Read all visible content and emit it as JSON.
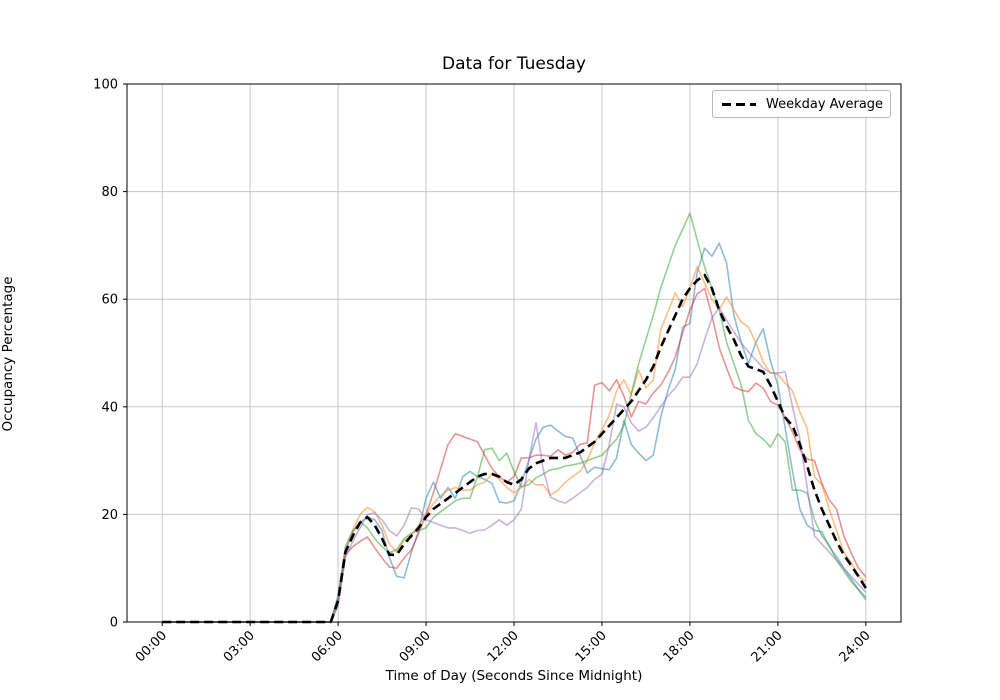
{
  "figure": {
    "title": "Data for Tuesday",
    "background": "#ffffff"
  },
  "axes": {
    "xlabel": "Time of Day (Seconds Since Midnight)",
    "ylabel": "Occupancy Percentage",
    "grid": true,
    "grid_color": "#c8c8c8",
    "spine_color": "#000000",
    "tick_font_px": 13
  },
  "legend": {
    "position": "upper right",
    "entries": [
      {
        "label": "Weekday Average",
        "color": "#000000",
        "style": "dashed"
      }
    ]
  },
  "chart_data": {
    "type": "line",
    "title": "Data for Tuesday",
    "xlabel": "Time of Day (Seconds Since Midnight)",
    "ylabel": "Occupancy Percentage",
    "x_start_seconds": 0,
    "x_step_seconds": 900,
    "n_points": 97,
    "xlim_seconds": [
      -4320,
      90720
    ],
    "ylim": [
      0,
      100
    ],
    "x_ticks": {
      "seconds": [
        0,
        10800,
        21600,
        32400,
        43200,
        54000,
        64800,
        75600,
        86400
      ],
      "labels": [
        "00:00",
        "03:00",
        "06:00",
        "09:00",
        "12:00",
        "15:00",
        "18:00",
        "21:00",
        "24:00"
      ],
      "rotation_deg": 45
    },
    "y_ticks": [
      0,
      20,
      40,
      60,
      80,
      100
    ],
    "legend_position": "upper right",
    "series": [
      {
        "id": "series-1",
        "color": "#1f77b4",
        "opacity": 0.5,
        "width": 1.6,
        "dash": null,
        "values": [
          0,
          0,
          0,
          0,
          0,
          0,
          0,
          0,
          0,
          0,
          0,
          0,
          0,
          0,
          0,
          0,
          0,
          0,
          0,
          0,
          0,
          0,
          0,
          0,
          5,
          14,
          17,
          18.5,
          19.5,
          19,
          17,
          12,
          8.5,
          8.2,
          13,
          17,
          23,
          26,
          23,
          25,
          23,
          27,
          28,
          27,
          26.5,
          25.8,
          22.3,
          22.1,
          22.5,
          25.8,
          30,
          34,
          36.2,
          36.6,
          35.5,
          34.5,
          34.2,
          31,
          27.7,
          28.8,
          28.5,
          28.3,
          30.5,
          37.5,
          33,
          31.4,
          30,
          31,
          38,
          43,
          47,
          54.8,
          55.5,
          65,
          69.5,
          68,
          70.4,
          66.7,
          57,
          52,
          48,
          52,
          54.5,
          48.5,
          44,
          36,
          28,
          21,
          18,
          17,
          16.8,
          14,
          12.2,
          10,
          8,
          6,
          4.6
        ]
      },
      {
        "id": "series-2",
        "color": "#ff7f0e",
        "opacity": 0.5,
        "width": 1.6,
        "dash": null,
        "values": [
          0,
          0,
          0,
          0,
          0,
          0,
          0,
          0,
          0,
          0,
          0,
          0,
          0,
          0,
          0,
          0,
          0,
          0,
          0,
          0,
          0,
          0,
          0,
          0,
          4,
          13.5,
          17,
          20,
          21.3,
          20.5,
          18,
          14.5,
          13,
          15.2,
          16.2,
          18,
          20,
          22,
          23.5,
          24.5,
          25,
          24.5,
          24.5,
          25.5,
          26,
          27.5,
          26.5,
          25,
          24,
          25,
          26.5,
          25.5,
          25.5,
          23.6,
          24.5,
          26,
          27,
          28,
          30,
          33.3,
          35.7,
          38.5,
          43,
          45,
          42.2,
          46.8,
          43.5,
          45,
          54.3,
          57.6,
          61.2,
          58.6,
          62,
          66,
          63,
          60,
          58,
          60.4,
          58,
          55.8,
          54.8,
          51.9,
          48.3,
          46.3,
          46,
          44.4,
          43,
          39,
          36,
          27,
          25.5,
          21,
          17,
          13,
          11,
          8.5,
          7.5
        ]
      },
      {
        "id": "series-3",
        "color": "#2ca02c",
        "opacity": 0.5,
        "width": 1.6,
        "dash": null,
        "values": [
          0,
          0,
          0,
          0,
          0,
          0,
          0,
          0,
          0,
          0,
          0,
          0,
          0,
          0,
          0,
          0,
          0,
          0,
          0,
          0,
          0,
          0,
          0,
          0,
          4.5,
          13,
          16.7,
          18.6,
          17.5,
          15.5,
          14,
          12.8,
          13.5,
          15.5,
          16.5,
          17,
          17.5,
          19.5,
          20.5,
          21.5,
          22.5,
          23,
          23,
          27,
          32,
          32.3,
          30,
          31.4,
          28,
          25.1,
          25.5,
          26.8,
          27.5,
          28.3,
          28.5,
          29,
          29.2,
          29.5,
          30,
          30.5,
          31,
          32.5,
          34,
          36.5,
          42.5,
          48,
          52.5,
          57,
          62,
          66,
          70,
          73,
          76,
          71,
          66,
          62,
          58,
          52,
          48,
          44,
          37.5,
          35,
          34,
          32.5,
          35,
          33.5,
          24.5,
          24.5,
          24,
          19,
          16,
          14.3,
          11.5,
          9.5,
          7.5,
          6,
          4.1
        ]
      },
      {
        "id": "series-4",
        "color": "#d62728",
        "opacity": 0.5,
        "width": 1.6,
        "dash": null,
        "values": [
          0,
          0,
          0,
          0,
          0,
          0,
          0,
          0,
          0,
          0,
          0,
          0,
          0,
          0,
          0,
          0,
          0,
          0,
          0,
          0,
          0,
          0,
          0,
          0,
          3.5,
          12.5,
          14,
          15,
          15.8,
          13.8,
          11.9,
          10.2,
          10,
          11.9,
          13.4,
          16.5,
          20,
          24,
          28.5,
          33,
          35,
          34.5,
          34,
          33.5,
          31,
          28.5,
          27,
          26,
          27,
          30.5,
          30.5,
          31,
          31,
          30.8,
          32,
          31,
          31.5,
          33,
          33.3,
          44,
          44.5,
          43,
          45,
          42,
          38.1,
          41,
          40.5,
          42.6,
          44,
          46.3,
          49.3,
          53.7,
          58,
          61,
          62,
          57,
          51,
          47.2,
          43.7,
          43.1,
          42.8,
          44.4,
          43.5,
          41,
          40.3,
          38,
          35.3,
          32,
          30.3,
          30,
          25.8,
          22.7,
          21,
          16,
          12.8,
          10,
          8.4
        ]
      },
      {
        "id": "series-5",
        "color": "#9467bd",
        "opacity": 0.5,
        "width": 1.6,
        "dash": null,
        "values": [
          0,
          0,
          0,
          0,
          0,
          0,
          0,
          0,
          0,
          0,
          0,
          0,
          0,
          0,
          0,
          0,
          0,
          0,
          0,
          0,
          0,
          0,
          0,
          0,
          3,
          12,
          15,
          17.5,
          20,
          20.3,
          19,
          17,
          16,
          18,
          21.2,
          21,
          19,
          18.5,
          18,
          17.5,
          17.5,
          17,
          16.5,
          17,
          17.1,
          18,
          19,
          18,
          19,
          21,
          30,
          37,
          28.3,
          23.2,
          22.5,
          22.1,
          23,
          24,
          25,
          26.5,
          27.5,
          33,
          40.5,
          40,
          37,
          35.5,
          36.2,
          38,
          40,
          42,
          43.5,
          45.5,
          45.5,
          48,
          52.5,
          56.5,
          58.4,
          56.1,
          53.9,
          51.9,
          50.2,
          48.7,
          47.2,
          46.3,
          46.3,
          46.5,
          40,
          34,
          25,
          16,
          14.5,
          13,
          11.5,
          10,
          8.5,
          7,
          5.5
        ]
      },
      {
        "id": "weekday-average",
        "label": "Weekday Average",
        "color": "#000000",
        "opacity": 1,
        "width": 2.6,
        "dash": "9 5",
        "values": [
          0,
          0,
          0,
          0,
          0,
          0,
          0,
          0,
          0,
          0,
          0,
          0,
          0,
          0,
          0,
          0,
          0,
          0,
          0,
          0,
          0,
          0,
          0,
          0,
          4,
          13,
          16,
          18.5,
          19.5,
          18,
          15.5,
          12.5,
          12.5,
          14.5,
          16,
          17.5,
          19.5,
          21,
          22,
          23,
          24,
          25,
          26,
          27,
          27.5,
          27.5,
          27,
          26,
          25.5,
          26.5,
          28.5,
          29.5,
          30,
          30.5,
          30.5,
          30.5,
          31,
          31.5,
          32.5,
          33.5,
          35,
          36.5,
          38,
          39.5,
          41,
          43,
          45,
          47.5,
          51,
          54,
          57,
          60,
          62,
          63.5,
          64.5,
          62,
          58,
          55,
          52.5,
          49.5,
          47.5,
          47,
          46.5,
          44,
          41,
          38,
          36.5,
          33,
          29,
          24.5,
          21,
          18,
          15,
          12.5,
          10.5,
          8.5,
          6.3
        ]
      }
    ]
  }
}
